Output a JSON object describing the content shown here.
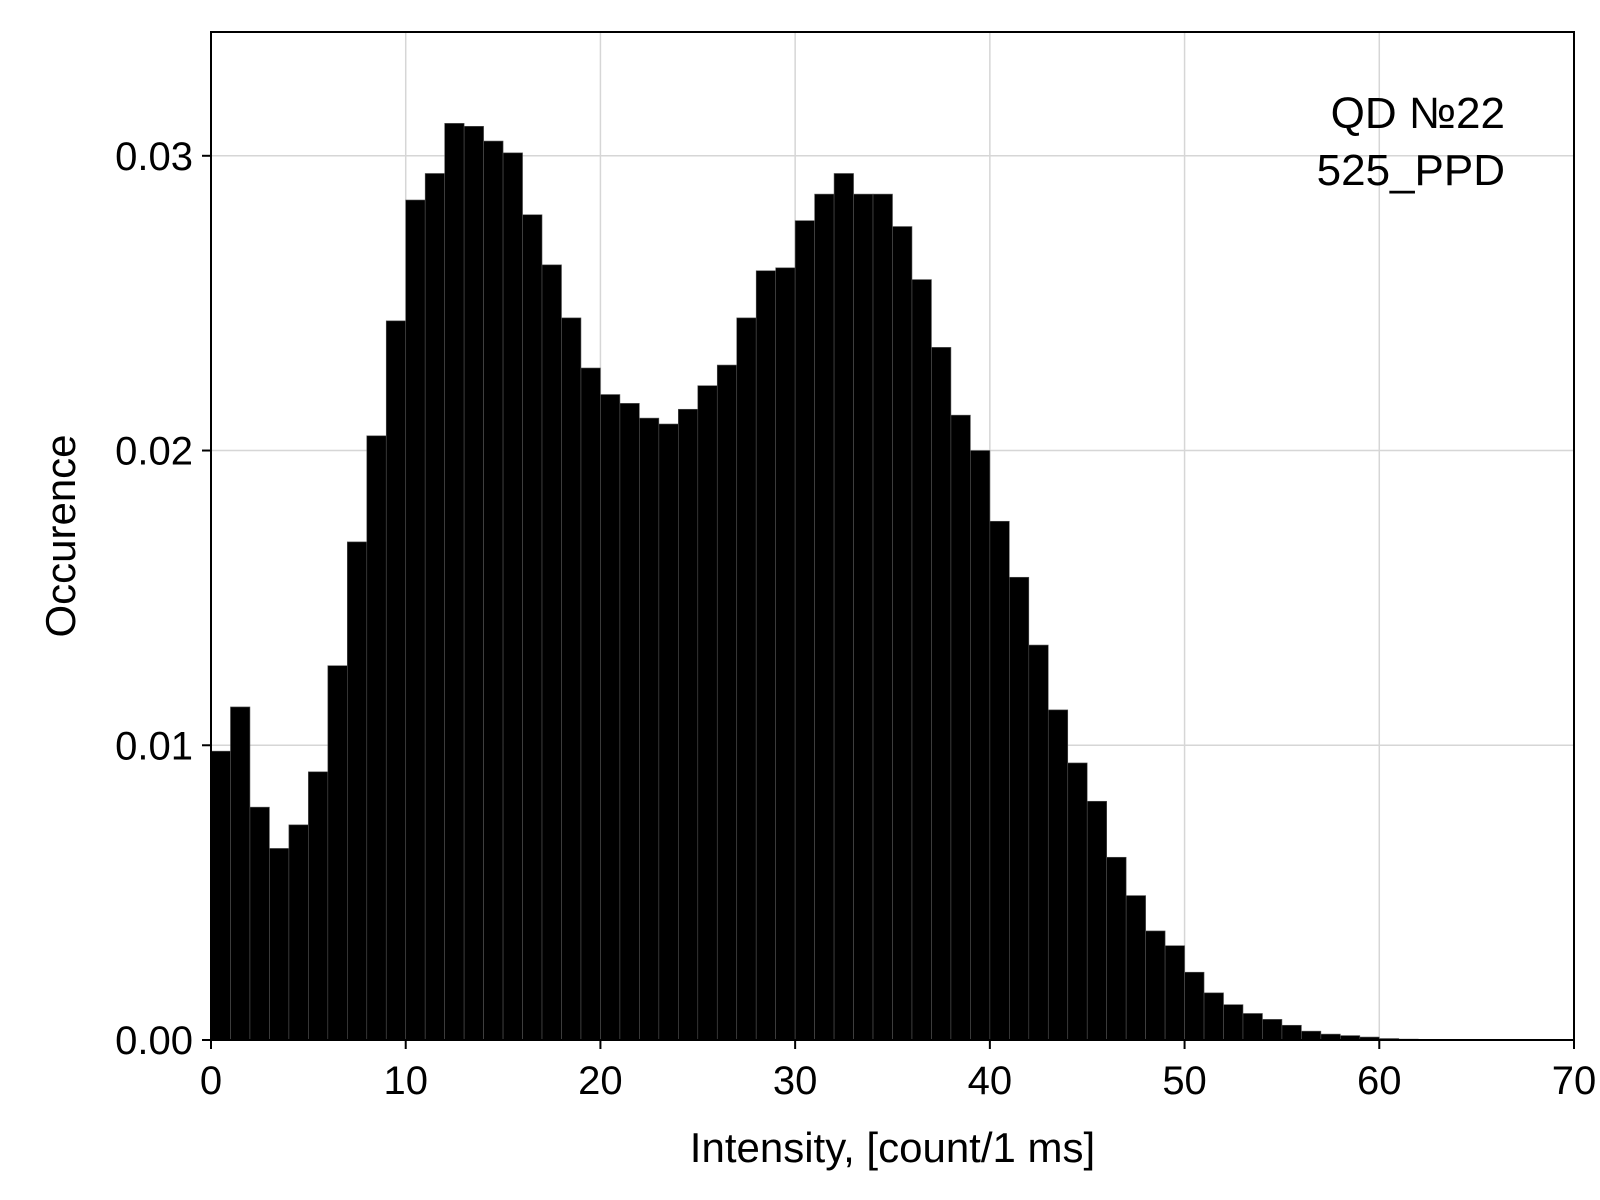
{
  "chart_data": {
    "type": "bar",
    "title": "",
    "xlabel": "Intensity, [count/1 ms]",
    "ylabel": "Occurence",
    "xlim": [
      0,
      70
    ],
    "ylim": [
      0,
      0.0342
    ],
    "grid": true,
    "bin_width": 1,
    "x_ticks": [
      0,
      10,
      20,
      30,
      40,
      50,
      60,
      70
    ],
    "x_tick_labels": [
      "0",
      "10",
      "20",
      "30",
      "40",
      "50",
      "60",
      "70"
    ],
    "y_ticks": [
      0,
      0.01,
      0.02,
      0.03
    ],
    "y_tick_labels": [
      "0.00",
      "0.01",
      "0.02",
      "0.03"
    ],
    "annotations": [
      "QD №22",
      "525_PPD"
    ],
    "bar_color": "#000000",
    "bin_starts": [
      0,
      1,
      2,
      3,
      4,
      5,
      6,
      7,
      8,
      9,
      10,
      11,
      12,
      13,
      14,
      15,
      16,
      17,
      18,
      19,
      20,
      21,
      22,
      23,
      24,
      25,
      26,
      27,
      28,
      29,
      30,
      31,
      32,
      33,
      34,
      35,
      36,
      37,
      38,
      39,
      40,
      41,
      42,
      43,
      44,
      45,
      46,
      47,
      48,
      49,
      50,
      51,
      52,
      53,
      54,
      55,
      56,
      57,
      58,
      59,
      60,
      61,
      62,
      63,
      64,
      65,
      66,
      67,
      68,
      69
    ],
    "values": [
      0.0098,
      0.0113,
      0.0079,
      0.0065,
      0.0073,
      0.0091,
      0.0127,
      0.0169,
      0.0205,
      0.0244,
      0.0285,
      0.0294,
      0.0311,
      0.031,
      0.0305,
      0.0301,
      0.028,
      0.0263,
      0.0245,
      0.0228,
      0.0219,
      0.0216,
      0.0211,
      0.0209,
      0.0214,
      0.0222,
      0.0229,
      0.0245,
      0.0261,
      0.0262,
      0.0278,
      0.0287,
      0.0294,
      0.0287,
      0.0287,
      0.0276,
      0.0258,
      0.0235,
      0.0212,
      0.02,
      0.0176,
      0.0157,
      0.0134,
      0.0112,
      0.0094,
      0.0081,
      0.0062,
      0.0049,
      0.0037,
      0.0032,
      0.0023,
      0.0016,
      0.0012,
      0.0009,
      0.0007,
      0.0005,
      0.0003,
      0.0002,
      0.00015,
      0.0001,
      5e-05,
      3e-05,
      2e-05,
      1e-05,
      1e-05,
      0,
      0,
      0,
      0,
      0
    ]
  }
}
